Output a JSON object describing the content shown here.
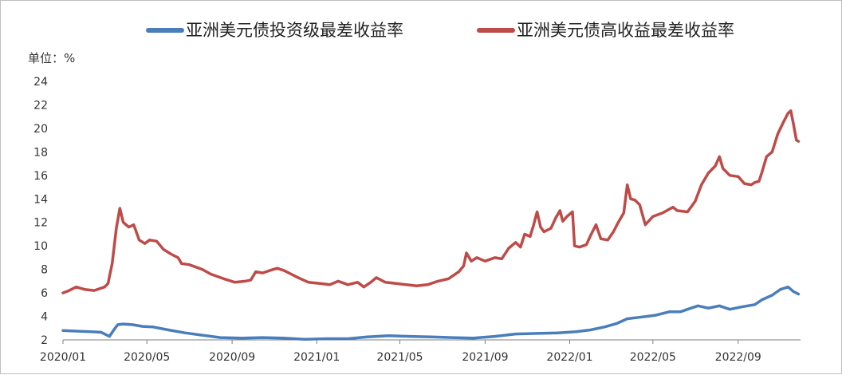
{
  "chart_data": {
    "type": "line",
    "unit_label": "单位：%",
    "legend_placement": "top",
    "grid": false,
    "ylim": [
      2,
      24
    ],
    "y_ticks": [
      "2",
      "4",
      "6",
      "8",
      "10",
      "12",
      "14",
      "16",
      "18",
      "20",
      "22",
      "24"
    ],
    "x_range": [
      "2020-01-01",
      "2022-11-30"
    ],
    "x_ticks": [
      {
        "label": "2020/01",
        "date": "2020-01-01"
      },
      {
        "label": "2020/05",
        "date": "2020-05-01"
      },
      {
        "label": "2020/09",
        "date": "2020-09-01"
      },
      {
        "label": "2021/01",
        "date": "2021-01-01"
      },
      {
        "label": "2021/05",
        "date": "2021-05-01"
      },
      {
        "label": "2021/09",
        "date": "2021-09-01"
      },
      {
        "label": "2022/01",
        "date": "2022-01-01"
      },
      {
        "label": "2022/05",
        "date": "2022-05-01"
      },
      {
        "label": "2022/09",
        "date": "2022-09-01"
      }
    ],
    "series": [
      {
        "name": "亚洲美元债投资级最差收益率",
        "color": "#4a7ebb",
        "points": [
          [
            "2020-01-01",
            2.8
          ],
          [
            "2020-01-20",
            2.75
          ],
          [
            "2020-02-10",
            2.7
          ],
          [
            "2020-02-25",
            2.65
          ],
          [
            "2020-03-08",
            2.3
          ],
          [
            "2020-03-15",
            2.9
          ],
          [
            "2020-03-20",
            3.3
          ],
          [
            "2020-03-28",
            3.35
          ],
          [
            "2020-04-10",
            3.3
          ],
          [
            "2020-04-25",
            3.15
          ],
          [
            "2020-05-10",
            3.1
          ],
          [
            "2020-06-01",
            2.85
          ],
          [
            "2020-06-25",
            2.6
          ],
          [
            "2020-07-20",
            2.4
          ],
          [
            "2020-08-15",
            2.2
          ],
          [
            "2020-09-15",
            2.15
          ],
          [
            "2020-10-15",
            2.2
          ],
          [
            "2020-11-15",
            2.15
          ],
          [
            "2020-12-15",
            2.05
          ],
          [
            "2021-01-15",
            2.1
          ],
          [
            "2021-02-15",
            2.1
          ],
          [
            "2021-03-15",
            2.25
          ],
          [
            "2021-04-15",
            2.35
          ],
          [
            "2021-05-15",
            2.3
          ],
          [
            "2021-06-15",
            2.25
          ],
          [
            "2021-07-15",
            2.2
          ],
          [
            "2021-08-15",
            2.15
          ],
          [
            "2021-09-15",
            2.3
          ],
          [
            "2021-10-15",
            2.5
          ],
          [
            "2021-11-15",
            2.55
          ],
          [
            "2021-12-15",
            2.6
          ],
          [
            "2022-01-10",
            2.7
          ],
          [
            "2022-01-31",
            2.85
          ],
          [
            "2022-02-20",
            3.1
          ],
          [
            "2022-03-10",
            3.4
          ],
          [
            "2022-03-25",
            3.8
          ],
          [
            "2022-04-15",
            3.95
          ],
          [
            "2022-05-05",
            4.1
          ],
          [
            "2022-05-25",
            4.4
          ],
          [
            "2022-06-10",
            4.4
          ],
          [
            "2022-06-25",
            4.7
          ],
          [
            "2022-07-05",
            4.9
          ],
          [
            "2022-07-20",
            4.7
          ],
          [
            "2022-08-05",
            4.9
          ],
          [
            "2022-08-20",
            4.6
          ],
          [
            "2022-09-05",
            4.8
          ],
          [
            "2022-09-25",
            5.0
          ],
          [
            "2022-10-05",
            5.4
          ],
          [
            "2022-10-20",
            5.8
          ],
          [
            "2022-11-01",
            6.3
          ],
          [
            "2022-11-12",
            6.5
          ],
          [
            "2022-11-20",
            6.1
          ],
          [
            "2022-11-27",
            5.9
          ]
        ]
      },
      {
        "name": "亚洲美元债高收益最差收益率",
        "color": "#be4b48",
        "points": [
          [
            "2020-01-01",
            6.0
          ],
          [
            "2020-01-10",
            6.2
          ],
          [
            "2020-01-20",
            6.5
          ],
          [
            "2020-02-01",
            6.3
          ],
          [
            "2020-02-15",
            6.2
          ],
          [
            "2020-03-01",
            6.5
          ],
          [
            "2020-03-06",
            6.8
          ],
          [
            "2020-03-12",
            8.5
          ],
          [
            "2020-03-18",
            11.5
          ],
          [
            "2020-03-23",
            13.2
          ],
          [
            "2020-03-28",
            12.0
          ],
          [
            "2020-04-05",
            11.6
          ],
          [
            "2020-04-12",
            11.8
          ],
          [
            "2020-04-20",
            10.5
          ],
          [
            "2020-04-28",
            10.2
          ],
          [
            "2020-05-05",
            10.5
          ],
          [
            "2020-05-15",
            10.4
          ],
          [
            "2020-05-25",
            9.7
          ],
          [
            "2020-06-05",
            9.3
          ],
          [
            "2020-06-15",
            9.0
          ],
          [
            "2020-06-20",
            8.5
          ],
          [
            "2020-07-01",
            8.4
          ],
          [
            "2020-07-20",
            8.0
          ],
          [
            "2020-08-01",
            7.6
          ],
          [
            "2020-08-20",
            7.2
          ],
          [
            "2020-09-05",
            6.9
          ],
          [
            "2020-09-20",
            7.0
          ],
          [
            "2020-09-28",
            7.1
          ],
          [
            "2020-10-05",
            7.8
          ],
          [
            "2020-10-15",
            7.7
          ],
          [
            "2020-10-25",
            7.9
          ],
          [
            "2020-11-05",
            8.1
          ],
          [
            "2020-11-15",
            7.9
          ],
          [
            "2020-11-25",
            7.6
          ],
          [
            "2020-12-05",
            7.3
          ],
          [
            "2020-12-20",
            6.9
          ],
          [
            "2021-01-05",
            6.8
          ],
          [
            "2021-01-20",
            6.7
          ],
          [
            "2021-02-01",
            7.0
          ],
          [
            "2021-02-15",
            6.7
          ],
          [
            "2021-03-01",
            6.9
          ],
          [
            "2021-03-10",
            6.5
          ],
          [
            "2021-03-20",
            6.9
          ],
          [
            "2021-03-28",
            7.3
          ],
          [
            "2021-04-10",
            6.9
          ],
          [
            "2021-04-25",
            6.8
          ],
          [
            "2021-05-10",
            6.7
          ],
          [
            "2021-05-25",
            6.6
          ],
          [
            "2021-06-10",
            6.7
          ],
          [
            "2021-06-25",
            7.0
          ],
          [
            "2021-07-10",
            7.2
          ],
          [
            "2021-07-25",
            7.8
          ],
          [
            "2021-08-01",
            8.3
          ],
          [
            "2021-08-05",
            9.4
          ],
          [
            "2021-08-12",
            8.7
          ],
          [
            "2021-08-20",
            9.0
          ],
          [
            "2021-09-01",
            8.7
          ],
          [
            "2021-09-15",
            9.0
          ],
          [
            "2021-09-25",
            8.9
          ],
          [
            "2021-10-05",
            9.8
          ],
          [
            "2021-10-15",
            10.3
          ],
          [
            "2021-10-22",
            9.9
          ],
          [
            "2021-10-28",
            11.0
          ],
          [
            "2021-11-05",
            10.8
          ],
          [
            "2021-11-10",
            11.8
          ],
          [
            "2021-11-15",
            12.9
          ],
          [
            "2021-11-20",
            11.6
          ],
          [
            "2021-11-25",
            11.2
          ],
          [
            "2021-12-05",
            11.5
          ],
          [
            "2021-12-12",
            12.4
          ],
          [
            "2021-12-18",
            13.0
          ],
          [
            "2021-12-22",
            12.1
          ],
          [
            "2021-12-28",
            12.5
          ],
          [
            "2022-01-05",
            12.9
          ],
          [
            "2022-01-08",
            10.0
          ],
          [
            "2022-01-15",
            9.9
          ],
          [
            "2022-01-25",
            10.1
          ],
          [
            "2022-02-01",
            11.0
          ],
          [
            "2022-02-08",
            11.8
          ],
          [
            "2022-02-15",
            10.6
          ],
          [
            "2022-02-25",
            10.5
          ],
          [
            "2022-03-05",
            11.2
          ],
          [
            "2022-03-12",
            12.0
          ],
          [
            "2022-03-20",
            12.8
          ],
          [
            "2022-03-25",
            15.2
          ],
          [
            "2022-03-30",
            14.0
          ],
          [
            "2022-04-05",
            13.9
          ],
          [
            "2022-04-12",
            13.5
          ],
          [
            "2022-04-20",
            11.8
          ],
          [
            "2022-05-01",
            12.5
          ],
          [
            "2022-05-15",
            12.8
          ],
          [
            "2022-05-30",
            13.3
          ],
          [
            "2022-06-05",
            13.0
          ],
          [
            "2022-06-20",
            12.9
          ],
          [
            "2022-07-01",
            13.8
          ],
          [
            "2022-07-10",
            15.2
          ],
          [
            "2022-07-20",
            16.2
          ],
          [
            "2022-07-30",
            16.8
          ],
          [
            "2022-08-05",
            17.6
          ],
          [
            "2022-08-10",
            16.6
          ],
          [
            "2022-08-20",
            16.0
          ],
          [
            "2022-09-01",
            15.9
          ],
          [
            "2022-09-10",
            15.3
          ],
          [
            "2022-09-20",
            15.2
          ],
          [
            "2022-09-25",
            15.4
          ],
          [
            "2022-10-01",
            15.5
          ],
          [
            "2022-10-05",
            16.2
          ],
          [
            "2022-10-12",
            17.6
          ],
          [
            "2022-10-20",
            18.0
          ],
          [
            "2022-10-28",
            19.5
          ],
          [
            "2022-11-05",
            20.5
          ],
          [
            "2022-11-12",
            21.3
          ],
          [
            "2022-11-16",
            21.5
          ],
          [
            "2022-11-20",
            20.3
          ],
          [
            "2022-11-24",
            19.0
          ],
          [
            "2022-11-27",
            18.9
          ]
        ]
      }
    ]
  }
}
